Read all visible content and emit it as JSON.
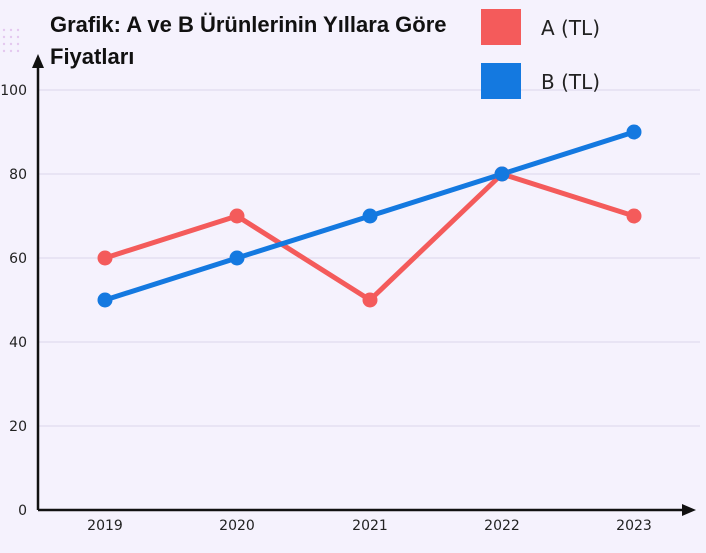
{
  "chart_data": {
    "type": "line",
    "title_lines": [
      "Grafik: A ve B Ürünlerinin Yıllara Göre",
      "Fiyatları"
    ],
    "categories": [
      "2019",
      "2020",
      "2021",
      "2022",
      "2023"
    ],
    "series": [
      {
        "name": "A (TL)",
        "color": "#f45b5b",
        "values": [
          60,
          70,
          50,
          80,
          70
        ]
      },
      {
        "name": "B (TL)",
        "color": "#1479e0",
        "values": [
          50,
          60,
          70,
          80,
          90
        ]
      }
    ],
    "y_ticks": [
      "0",
      "20",
      "40",
      "60",
      "80",
      "100"
    ],
    "ylim": [
      0,
      100
    ],
    "xlabel": "",
    "ylabel": "",
    "grid": true,
    "legend_position": "top-right"
  }
}
